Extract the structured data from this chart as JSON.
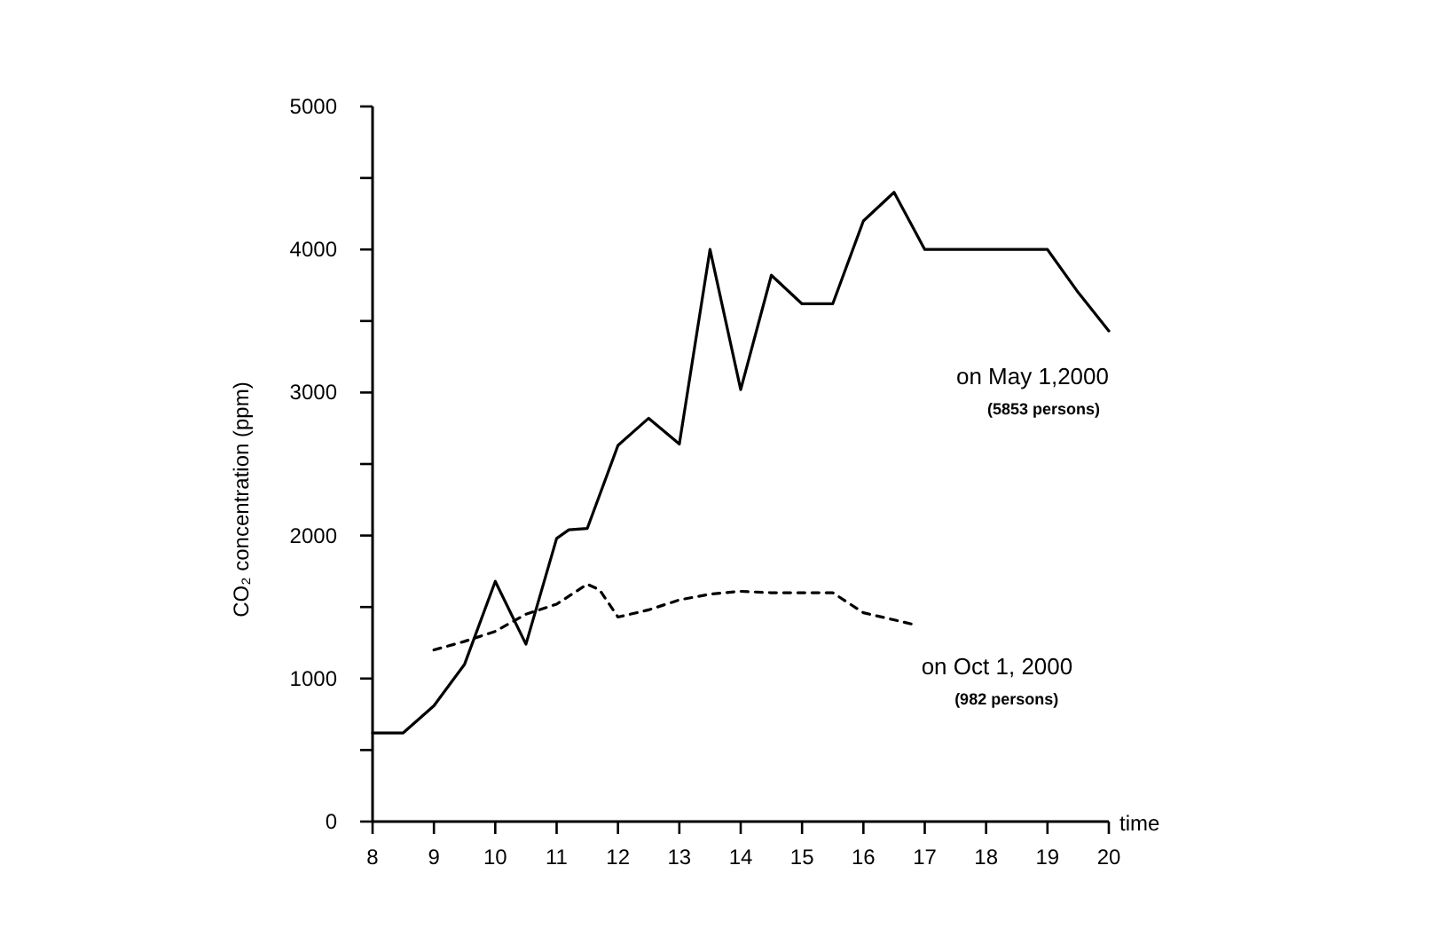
{
  "chart_data": {
    "type": "line",
    "xlabel": "time",
    "ylabel": "CO₂ concentration (ppm)",
    "xlim": [
      8,
      20
    ],
    "xticks": [
      8,
      9,
      10,
      11,
      12,
      13,
      14,
      15,
      16,
      17,
      18,
      19,
      20
    ],
    "ylim": [
      0,
      5000
    ],
    "yticks": [
      0,
      {
        "value": 500,
        "label": null
      },
      1000,
      {
        "value": 1500,
        "label": null
      },
      2000,
      {
        "value": 2500,
        "label": null
      },
      3000,
      {
        "value": 3500,
        "label": null
      },
      4000,
      {
        "value": 4500,
        "label": null
      },
      5000
    ],
    "grid": false,
    "marker": "none",
    "series": [
      {
        "name": "on May 1,2000",
        "color": "#000000",
        "line_style": "solid",
        "x": [
          8,
          8.5,
          9,
          9.5,
          10,
          10.5,
          11,
          11.2,
          11.5,
          12,
          12.5,
          13,
          13.5,
          14,
          14.5,
          15,
          15.5,
          16,
          16.5,
          17,
          19,
          19.5,
          20
        ],
        "values": [
          620,
          620,
          810,
          1100,
          1680,
          1240,
          1980,
          2040,
          2050,
          2630,
          2820,
          2640,
          4000,
          3020,
          3820,
          3620,
          3620,
          4200,
          4400,
          4000,
          4000,
          3700,
          3430
        ]
      },
      {
        "name": "on Oct 1, 2000",
        "color": "#000000",
        "line_style": "dashed",
        "x": [
          9,
          9.5,
          10,
          10.5,
          11,
          11.5,
          11.7,
          12,
          12.5,
          13,
          13.5,
          14,
          14.5,
          15,
          15.5,
          16,
          16.8
        ],
        "values": [
          1200,
          1260,
          1330,
          1450,
          1520,
          1660,
          1620,
          1430,
          1480,
          1550,
          1590,
          1610,
          1600,
          1600,
          1600,
          1460,
          1380
        ]
      }
    ],
    "annotations": [
      "(5853 persons)",
      "(982 persons)"
    ]
  }
}
